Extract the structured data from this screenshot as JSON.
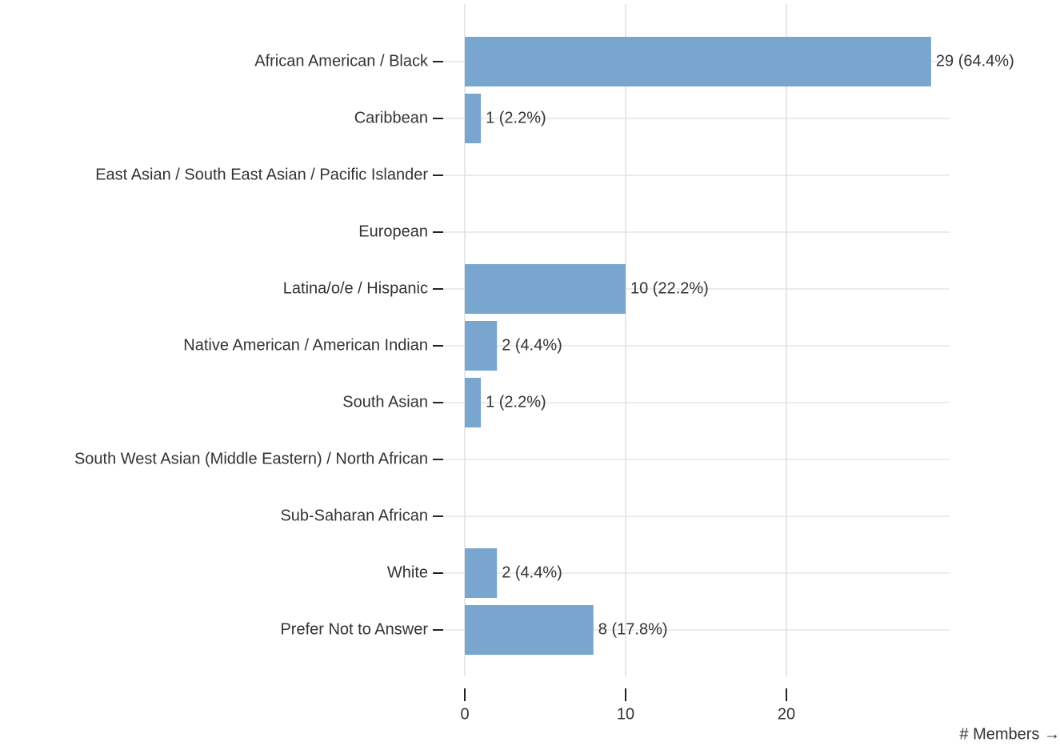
{
  "chart_data": {
    "type": "bar",
    "orientation": "horizontal",
    "categories": [
      "African American / Black",
      "Caribbean",
      "East Asian / South East Asian / Pacific Islander",
      "European",
      "Latina/o/e / Hispanic",
      "Native American / American Indian",
      "South Asian",
      "South West Asian (Middle Eastern) / North African",
      "Sub-Saharan African",
      "White",
      "Prefer Not to Answer"
    ],
    "values": [
      29,
      1,
      0,
      0,
      10,
      2,
      1,
      0,
      0,
      2,
      8
    ],
    "value_labels": [
      "29 (64.4%)",
      "1 (2.2%)",
      null,
      null,
      "10 (22.2%)",
      "2 (4.4%)",
      "1 (2.2%)",
      null,
      null,
      "2 (4.4%)",
      "8 (17.8%)"
    ],
    "color": "#78a6cf",
    "xlabel": "# Members →",
    "xlim": [
      0,
      30
    ],
    "xticks": [
      0,
      10,
      20
    ],
    "grid": true
  }
}
